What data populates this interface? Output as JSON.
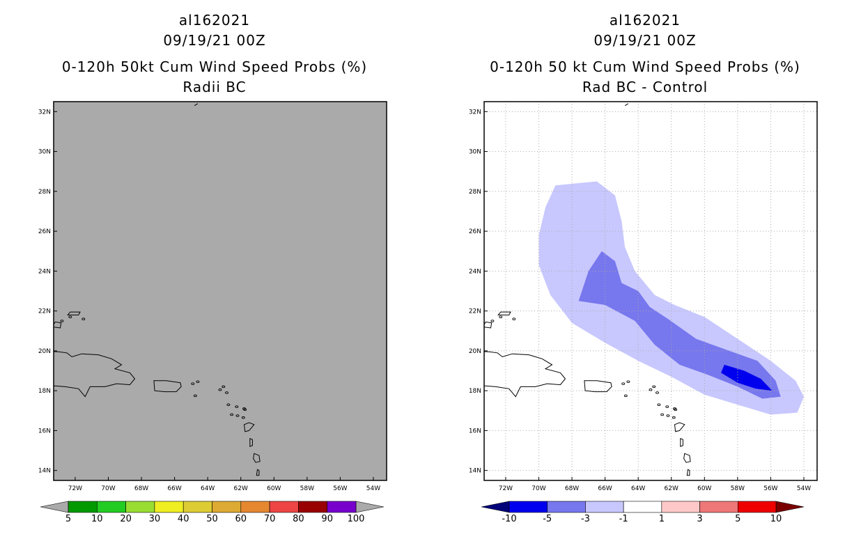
{
  "chart_data": [
    {
      "type": "map",
      "storm_id": "al162021",
      "date": "09/19/21 00Z",
      "title": "0-120h 50kt Cum Wind Speed Probs (%)",
      "subtitle": "Radii BC",
      "lon_range": [
        -73.3,
        -53.2
      ],
      "lat_range": [
        13.5,
        32.5
      ],
      "x_ticks": [
        "72W",
        "70W",
        "68W",
        "66W",
        "64W",
        "62W",
        "60W",
        "58W",
        "56W",
        "54W"
      ],
      "y_ticks": [
        "14N",
        "16N",
        "18N",
        "20N",
        "22N",
        "24N",
        "26N",
        "28N",
        "30N",
        "32N"
      ],
      "grid": false,
      "background": "#aaaaaa",
      "colorbar": {
        "levels": [
          "5",
          "10",
          "20",
          "30",
          "40",
          "50",
          "60",
          "70",
          "80",
          "90",
          "100"
        ],
        "colors": [
          "#009900",
          "#22cc22",
          "#99dd33",
          "#eeee22",
          "#ddcc33",
          "#ddaa33",
          "#e58830",
          "#ee4444",
          "#990000",
          "#7700cc"
        ],
        "end_color": "#aaaaaa"
      }
    },
    {
      "type": "map",
      "storm_id": "al162021",
      "date": "09/19/21 00Z",
      "title": "0-120h 50 kt Cum Wind Speed Probs (%)",
      "subtitle": "Rad BC - Control",
      "lon_range": [
        -73.3,
        -53.2
      ],
      "lat_range": [
        13.5,
        32.5
      ],
      "x_ticks": [
        "72W",
        "70W",
        "68W",
        "66W",
        "64W",
        "62W",
        "60W",
        "58W",
        "56W",
        "54W"
      ],
      "y_ticks": [
        "14N",
        "16N",
        "18N",
        "20N",
        "22N",
        "24N",
        "26N",
        "28N",
        "30N",
        "32N"
      ],
      "grid": true,
      "background": "#ffffff",
      "contours": [
        {
          "range": "-3 to -1",
          "color": "#c8c8ff",
          "polygon": [
            [
              -69.0,
              28.3
            ],
            [
              -66.5,
              28.5
            ],
            [
              -65.4,
              27.8
            ],
            [
              -65.0,
              26.5
            ],
            [
              -64.8,
              25.2
            ],
            [
              -64.2,
              24.0
            ],
            [
              -63.0,
              22.8
            ],
            [
              -61.8,
              22.3
            ],
            [
              -60.0,
              21.7
            ],
            [
              -58.0,
              20.6
            ],
            [
              -56.0,
              19.5
            ],
            [
              -54.5,
              18.5
            ],
            [
              -54.0,
              17.7
            ],
            [
              -54.4,
              16.9
            ],
            [
              -56.0,
              16.8
            ],
            [
              -58.0,
              17.3
            ],
            [
              -60.0,
              17.8
            ],
            [
              -62.0,
              18.7
            ],
            [
              -64.0,
              19.5
            ],
            [
              -66.0,
              20.4
            ],
            [
              -68.0,
              21.4
            ],
            [
              -69.3,
              22.8
            ],
            [
              -70.0,
              24.3
            ],
            [
              -70.0,
              25.8
            ],
            [
              -69.6,
              27.2
            ]
          ]
        },
        {
          "range": "-5 to -3",
          "color": "#7777ee",
          "polygon": [
            [
              -66.2,
              25.0
            ],
            [
              -65.4,
              24.5
            ],
            [
              -65.0,
              23.4
            ],
            [
              -64.0,
              23.0
            ],
            [
              -63.3,
              22.2
            ],
            [
              -62.2,
              21.6
            ],
            [
              -60.5,
              20.6
            ],
            [
              -58.5,
              20.0
            ],
            [
              -56.8,
              19.5
            ],
            [
              -55.7,
              18.5
            ],
            [
              -55.4,
              17.7
            ],
            [
              -56.5,
              17.6
            ],
            [
              -58.0,
              18.2
            ],
            [
              -59.8,
              18.8
            ],
            [
              -61.5,
              19.3
            ],
            [
              -63.0,
              20.3
            ],
            [
              -64.2,
              21.5
            ],
            [
              -66.0,
              22.3
            ],
            [
              -67.6,
              22.5
            ],
            [
              -67.0,
              24.0
            ]
          ]
        },
        {
          "range": "-10 to -5",
          "color": "#0000ee",
          "polygon": [
            [
              -58.8,
              19.3
            ],
            [
              -57.6,
              19.0
            ],
            [
              -56.6,
              18.6
            ],
            [
              -55.9,
              18.0
            ],
            [
              -56.9,
              18.1
            ],
            [
              -58.0,
              18.4
            ],
            [
              -59.0,
              18.9
            ]
          ]
        }
      ],
      "colorbar": {
        "levels": [
          "-10",
          "-5",
          "-3",
          "-1",
          "1",
          "3",
          "5",
          "10"
        ],
        "colors": [
          "#0000ee",
          "#7777ee",
          "#c8c8ff",
          "#ffffff",
          "#ffc8c8",
          "#ee7777",
          "#ee0000"
        ],
        "start_color": "#00007a",
        "end_color": "#7a0000"
      }
    }
  ]
}
